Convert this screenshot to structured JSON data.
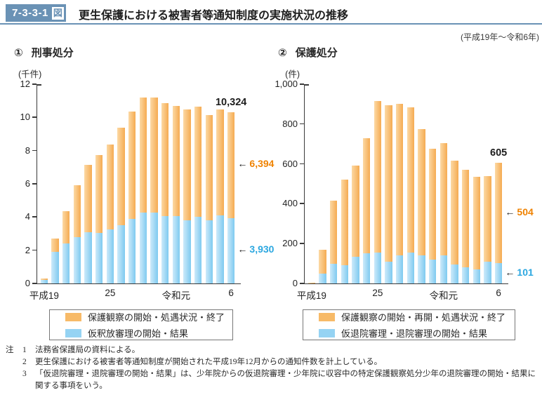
{
  "header": {
    "badge_number": "7-3-3-1",
    "badge_suffix": "図",
    "title": "更生保護における被害者等通知制度の実施状況の推移",
    "period_note": "(平成19年～令和6年)"
  },
  "colors": {
    "header_blue": "#6a92b5",
    "bar_orange": "#f7ba68",
    "bar_blue": "#95d3f3",
    "annotation_orange_text": "#ef8200",
    "annotation_blue_text": "#2ba7e0",
    "axis_color": "#3a3a3a"
  },
  "chart_data": [
    {
      "type": "bar",
      "stacked": true,
      "panel_label": "①",
      "title": "刑事処分",
      "unit": "(千件)",
      "ylim": [
        0,
        12
      ],
      "yticks": [
        0,
        2,
        4,
        6,
        8,
        10,
        12
      ],
      "ytick_labels": [
        "0",
        "2",
        "4",
        "6",
        "8",
        "10",
        "12"
      ],
      "grid": false,
      "legend_position": "bottom",
      "categories": [
        "平成19",
        "20",
        "21",
        "22",
        "23",
        "24",
        "25",
        "26",
        "27",
        "28",
        "29",
        "30",
        "令和元",
        "2",
        "3",
        "4",
        "5",
        "6"
      ],
      "xticks": [
        {
          "index": 0,
          "label": "平成19"
        },
        {
          "index": 6,
          "label": "25"
        },
        {
          "index": 12,
          "label": "令和元"
        },
        {
          "index": 17,
          "label": "6"
        }
      ],
      "series": [
        {
          "name": "仮釈放審理の開始・結果",
          "color": "#95d3f3",
          "values": [
            0.2,
            1.9,
            2.4,
            2.8,
            3.1,
            3.05,
            3.25,
            3.5,
            3.9,
            4.25,
            4.25,
            4.05,
            4.05,
            3.8,
            4.0,
            3.8,
            4.1,
            3.93
          ]
        },
        {
          "name": "保護観察の開始・処遇状況・終了",
          "color": "#f7ba68",
          "values": [
            0.1,
            0.8,
            1.95,
            3.1,
            4.05,
            4.7,
            5.1,
            5.9,
            6.45,
            6.95,
            6.95,
            6.8,
            6.65,
            6.7,
            6.65,
            6.35,
            6.4,
            6.394
          ]
        }
      ],
      "annotations": {
        "total_label": "10,324",
        "top_series_label": "6,394",
        "bottom_series_label": "3,930"
      },
      "legend": [
        {
          "label": "保護観察の開始・処遇状況・終了",
          "color": "#f7ba68"
        },
        {
          "label": "仮釈放審理の開始・結果",
          "color": "#95d3f3"
        }
      ]
    },
    {
      "type": "bar",
      "stacked": true,
      "panel_label": "②",
      "title": "保護処分",
      "unit": "(件)",
      "ylim": [
        0,
        1000
      ],
      "yticks": [
        0,
        200,
        400,
        600,
        800,
        1000
      ],
      "ytick_labels": [
        "0",
        "200",
        "400",
        "600",
        "800",
        "1,000"
      ],
      "grid": false,
      "legend_position": "bottom",
      "categories": [
        "平成19",
        "20",
        "21",
        "22",
        "23",
        "24",
        "25",
        "26",
        "27",
        "28",
        "29",
        "30",
        "令和元",
        "2",
        "3",
        "4",
        "5",
        "6"
      ],
      "xticks": [
        {
          "index": 0,
          "label": "平成19"
        },
        {
          "index": 6,
          "label": "25"
        },
        {
          "index": 12,
          "label": "令和元"
        },
        {
          "index": 17,
          "label": "6"
        }
      ],
      "series": [
        {
          "name": "仮退院審理・退院審理の開始・結果",
          "color": "#95d3f3",
          "values": [
            0,
            50,
            100,
            90,
            135,
            150,
            155,
            110,
            140,
            155,
            140,
            120,
            140,
            95,
            80,
            70,
            110,
            101
          ]
        },
        {
          "name": "保護観察の開始・再開・処遇状況・終了",
          "color": "#f7ba68",
          "values": [
            5,
            120,
            315,
            430,
            455,
            580,
            760,
            785,
            760,
            730,
            635,
            555,
            565,
            520,
            490,
            465,
            430,
            504
          ]
        }
      ],
      "annotations": {
        "total_label": "605",
        "top_series_label": "504",
        "bottom_series_label": "101"
      },
      "legend": [
        {
          "label": "保護観察の開始・再開・処遇状況・終了",
          "color": "#f7ba68"
        },
        {
          "label": "仮退院審理・退院審理の開始・結果",
          "color": "#95d3f3"
        }
      ]
    }
  ],
  "notes": {
    "marker": "注",
    "items": [
      {
        "num": "1",
        "text": "法務省保護局の資料による。"
      },
      {
        "num": "2",
        "text": "更生保護における被害者等通知制度が開始された平成19年12月からの通知件数を計上している。"
      },
      {
        "num": "3",
        "text": "「仮退院審理・退院審理の開始・結果」は、少年院からの仮退院審理・少年院に収容中の特定保護観察処分少年の退院審理の開始・結果に関する事項をいう。"
      }
    ]
  }
}
